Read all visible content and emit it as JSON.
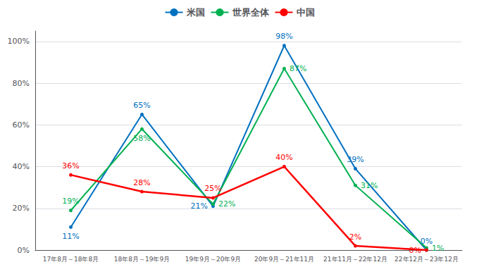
{
  "chart_data": {
    "type": "line",
    "categories": [
      "17年8月～18年8月",
      "18年8月～19年9月",
      "19年9月～20年9月",
      "20年9月～21年11月",
      "21年11月～22年12月",
      "22年12月～23年12月"
    ],
    "series": [
      {
        "name": "米国",
        "color": "#0070C0",
        "values": [
          11,
          65,
          21,
          98,
          39,
          0
        ],
        "value_labels": [
          "11%",
          "65%",
          "21%",
          "98%",
          "39%",
          "0%"
        ]
      },
      {
        "name": "世界全体",
        "color": "#00B050",
        "values": [
          19,
          58,
          22,
          87,
          31,
          1
        ],
        "value_labels": [
          "19%",
          "58%",
          "22%",
          "87%",
          "31%",
          "1%"
        ]
      },
      {
        "name": "中国",
        "color": "#FF0000",
        "values": [
          36,
          28,
          25,
          40,
          2,
          0
        ],
        "value_labels": [
          "36%",
          "28%",
          "25%",
          "40%",
          "2%",
          "0%"
        ]
      }
    ],
    "ylim": [
      0,
      105
    ],
    "yticks": [
      {
        "value": 0,
        "label": "0%"
      },
      {
        "value": 20,
        "label": "20%"
      },
      {
        "value": 40,
        "label": "40%"
      },
      {
        "value": 60,
        "label": "60%"
      },
      {
        "value": 80,
        "label": "80%"
      },
      {
        "value": 100,
        "label": "100%"
      }
    ],
    "grid": true,
    "legend": "top",
    "data_labels": true
  }
}
